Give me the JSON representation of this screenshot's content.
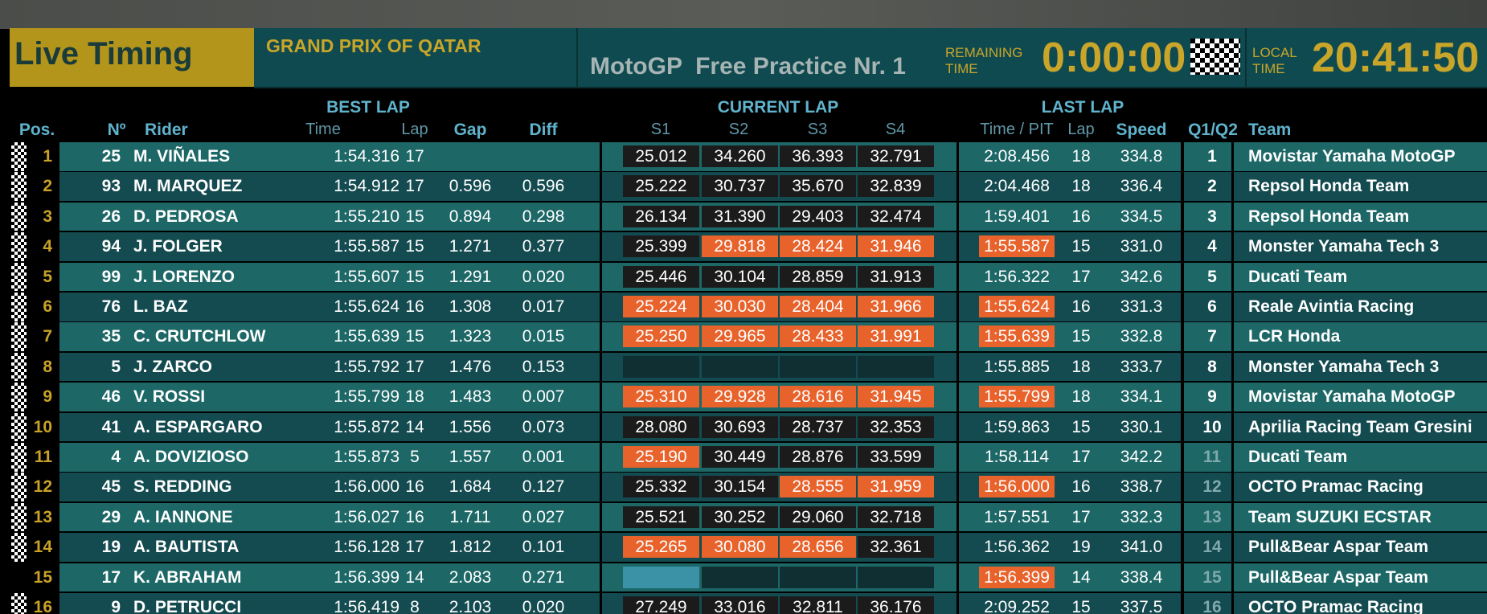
{
  "header": {
    "title": "Live Timing",
    "event": "GRAND PRIX OF QATAR",
    "session": "MotoGP  Free Practice Nr. 1",
    "remaining_label": "REMAINING TIME",
    "remaining": "0:00:00",
    "local_label": "LOCAL TIME",
    "local_time": "20:41:50"
  },
  "columns": {
    "best_lap": "BEST LAP",
    "current_lap": "CURRENT LAP",
    "last_lap": "LAST LAP",
    "pos": "Pos.",
    "num": "Nº",
    "rider": "Rider",
    "time": "Time",
    "lap": "Lap",
    "gap": "Gap",
    "diff": "Diff",
    "sectors": [
      "S1",
      "S2",
      "S3",
      "S4"
    ],
    "time_pit": "Time / PIT",
    "last_lap_lap": "Lap",
    "speed": "Speed",
    "q": "Q1/Q2",
    "team": "Team"
  },
  "colors": {
    "best": "#e8622b",
    "normal": "#1b1b1b",
    "progress": "#3b92a6",
    "empty": "#0f2f33"
  },
  "rows": [
    {
      "pos": "1",
      "num": "25",
      "rider": "M. VIÑALES",
      "best": "1:54.316",
      "lap": "17",
      "sectors": [
        "25.012",
        "34.260",
        "36.393",
        "32.791"
      ],
      "sector_state": [
        "normal",
        "normal",
        "normal",
        "normal"
      ],
      "last": "2:08.456",
      "last_state": "plain",
      "last_lap": "18",
      "speed": "334.8",
      "q": "1",
      "team": "Movistar Yamaha MotoGP",
      "flag": true
    },
    {
      "pos": "2",
      "num": "93",
      "rider": "M. MARQUEZ",
      "best": "1:54.912",
      "lap": "17",
      "gap": "0.596",
      "diff": "0.596",
      "sectors": [
        "25.222",
        "30.737",
        "35.670",
        "32.839"
      ],
      "sector_state": [
        "normal",
        "normal",
        "normal",
        "normal"
      ],
      "last": "2:04.468",
      "last_state": "plain",
      "last_lap": "18",
      "speed": "336.4",
      "q": "2",
      "team": "Repsol Honda Team",
      "flag": true
    },
    {
      "pos": "3",
      "num": "26",
      "rider": "D. PEDROSA",
      "best": "1:55.210",
      "lap": "15",
      "gap": "0.894",
      "diff": "0.298",
      "sectors": [
        "26.134",
        "31.390",
        "29.403",
        "32.474"
      ],
      "sector_state": [
        "normal",
        "normal",
        "normal",
        "normal"
      ],
      "last": "1:59.401",
      "last_state": "plain",
      "last_lap": "16",
      "speed": "334.5",
      "q": "3",
      "team": "Repsol Honda Team",
      "flag": true
    },
    {
      "pos": "4",
      "num": "94",
      "rider": "J. FOLGER",
      "best": "1:55.587",
      "lap": "15",
      "gap": "1.271",
      "diff": "0.377",
      "sectors": [
        "25.399",
        "29.818",
        "28.424",
        "31.946"
      ],
      "sector_state": [
        "normal",
        "best",
        "best",
        "best"
      ],
      "last": "1:55.587",
      "last_state": "best",
      "last_lap": "15",
      "speed": "331.0",
      "q": "4",
      "team": "Monster Yamaha Tech 3",
      "flag": true
    },
    {
      "pos": "5",
      "num": "99",
      "rider": "J. LORENZO",
      "best": "1:55.607",
      "lap": "15",
      "gap": "1.291",
      "diff": "0.020",
      "sectors": [
        "25.446",
        "30.104",
        "28.859",
        "31.913"
      ],
      "sector_state": [
        "normal",
        "normal",
        "normal",
        "normal"
      ],
      "last": "1:56.322",
      "last_state": "plain",
      "last_lap": "17",
      "speed": "342.6",
      "q": "5",
      "team": "Ducati Team",
      "flag": true
    },
    {
      "pos": "6",
      "num": "76",
      "rider": "L. BAZ",
      "best": "1:55.624",
      "lap": "16",
      "gap": "1.308",
      "diff": "0.017",
      "sectors": [
        "25.224",
        "30.030",
        "28.404",
        "31.966"
      ],
      "sector_state": [
        "best",
        "best",
        "best",
        "best"
      ],
      "last": "1:55.624",
      "last_state": "best",
      "last_lap": "16",
      "speed": "331.3",
      "q": "6",
      "team": "Reale Avintia Racing",
      "flag": true
    },
    {
      "pos": "7",
      "num": "35",
      "rider": "C. CRUTCHLOW",
      "best": "1:55.639",
      "lap": "15",
      "gap": "1.323",
      "diff": "0.015",
      "sectors": [
        "25.250",
        "29.965",
        "28.433",
        "31.991"
      ],
      "sector_state": [
        "best",
        "best",
        "best",
        "best"
      ],
      "last": "1:55.639",
      "last_state": "best",
      "last_lap": "15",
      "speed": "332.8",
      "q": "7",
      "team": "LCR Honda",
      "flag": true
    },
    {
      "pos": "8",
      "num": "5",
      "rider": "J. ZARCO",
      "best": "1:55.792",
      "lap": "17",
      "gap": "1.476",
      "diff": "0.153",
      "sectors": [
        null,
        null,
        null,
        null
      ],
      "sector_state": [
        "empty",
        "empty",
        "empty",
        "empty"
      ],
      "last": "1:55.885",
      "last_state": "plain",
      "last_lap": "18",
      "speed": "333.7",
      "q": "8",
      "team": "Monster Yamaha Tech 3",
      "flag": true
    },
    {
      "pos": "9",
      "num": "46",
      "rider": "V. ROSSI",
      "best": "1:55.799",
      "lap": "18",
      "gap": "1.483",
      "diff": "0.007",
      "sectors": [
        "25.310",
        "29.928",
        "28.616",
        "31.945"
      ],
      "sector_state": [
        "best",
        "best",
        "best",
        "best"
      ],
      "last": "1:55.799",
      "last_state": "best",
      "last_lap": "18",
      "speed": "334.1",
      "q": "9",
      "team": "Movistar Yamaha MotoGP",
      "flag": true
    },
    {
      "pos": "10",
      "num": "41",
      "rider": "A. ESPARGARO",
      "best": "1:55.872",
      "lap": "14",
      "gap": "1.556",
      "diff": "0.073",
      "sectors": [
        "28.080",
        "30.693",
        "28.737",
        "32.353"
      ],
      "sector_state": [
        "normal",
        "normal",
        "normal",
        "normal"
      ],
      "last": "1:59.863",
      "last_state": "plain",
      "last_lap": "15",
      "speed": "330.1",
      "q": "10",
      "team": "Aprilia Racing Team Gresini",
      "flag": true
    },
    {
      "pos": "11",
      "num": "4",
      "rider": "A. DOVIZIOSO",
      "best": "1:55.873",
      "lap": "5",
      "gap": "1.557",
      "diff": "0.001",
      "sectors": [
        "25.190",
        "30.449",
        "28.876",
        "33.599"
      ],
      "sector_state": [
        "best",
        "normal",
        "normal",
        "normal"
      ],
      "last": "1:58.114",
      "last_state": "plain",
      "last_lap": "17",
      "speed": "342.2",
      "q": "11",
      "team": "Ducati Team",
      "flag": true
    },
    {
      "pos": "12",
      "num": "45",
      "rider": "S. REDDING",
      "best": "1:56.000",
      "lap": "16",
      "gap": "1.684",
      "diff": "0.127",
      "sectors": [
        "25.332",
        "30.154",
        "28.555",
        "31.959"
      ],
      "sector_state": [
        "normal",
        "normal",
        "best",
        "best"
      ],
      "last": "1:56.000",
      "last_state": "best",
      "last_lap": "16",
      "speed": "338.7",
      "q": "12",
      "team": "OCTO Pramac Racing",
      "flag": true
    },
    {
      "pos": "13",
      "num": "29",
      "rider": "A. IANNONE",
      "best": "1:56.027",
      "lap": "16",
      "gap": "1.711",
      "diff": "0.027",
      "sectors": [
        "25.521",
        "30.252",
        "29.060",
        "32.718"
      ],
      "sector_state": [
        "normal",
        "normal",
        "normal",
        "normal"
      ],
      "last": "1:57.551",
      "last_state": "plain",
      "last_lap": "17",
      "speed": "332.3",
      "q": "13",
      "team": "Team SUZUKI ECSTAR",
      "flag": true
    },
    {
      "pos": "14",
      "num": "19",
      "rider": "A. BAUTISTA",
      "best": "1:56.128",
      "lap": "17",
      "gap": "1.812",
      "diff": "0.101",
      "sectors": [
        "25.265",
        "30.080",
        "28.656",
        "32.361"
      ],
      "sector_state": [
        "best",
        "best",
        "best",
        "normal"
      ],
      "last": "1:56.362",
      "last_state": "plain",
      "last_lap": "19",
      "speed": "341.0",
      "q": "14",
      "team": "Pull&Bear Aspar Team",
      "flag": true
    },
    {
      "pos": "15",
      "num": "17",
      "rider": "K. ABRAHAM",
      "best": "1:56.399",
      "lap": "14",
      "gap": "2.083",
      "diff": "0.271",
      "sectors": [
        null,
        null,
        null,
        null
      ],
      "sector_state": [
        "progress",
        "empty",
        "empty",
        "empty"
      ],
      "last": "1:56.399",
      "last_state": "best",
      "last_lap": "14",
      "speed": "338.4",
      "q": "15",
      "team": "Pull&Bear Aspar Team",
      "flag": false
    },
    {
      "pos": "16",
      "num": "9",
      "rider": "D. PETRUCCI",
      "best": "1:56.419",
      "lap": "8",
      "gap": "2.103",
      "diff": "0.020",
      "sectors": [
        "27.249",
        "33.016",
        "32.811",
        "36.176"
      ],
      "sector_state": [
        "normal",
        "normal",
        "normal",
        "normal"
      ],
      "last": "2:09.252",
      "last_state": "plain",
      "last_lap": "15",
      "speed": "337.5",
      "q": "16",
      "team": "OCTO Pramac Racing",
      "flag": true
    }
  ]
}
